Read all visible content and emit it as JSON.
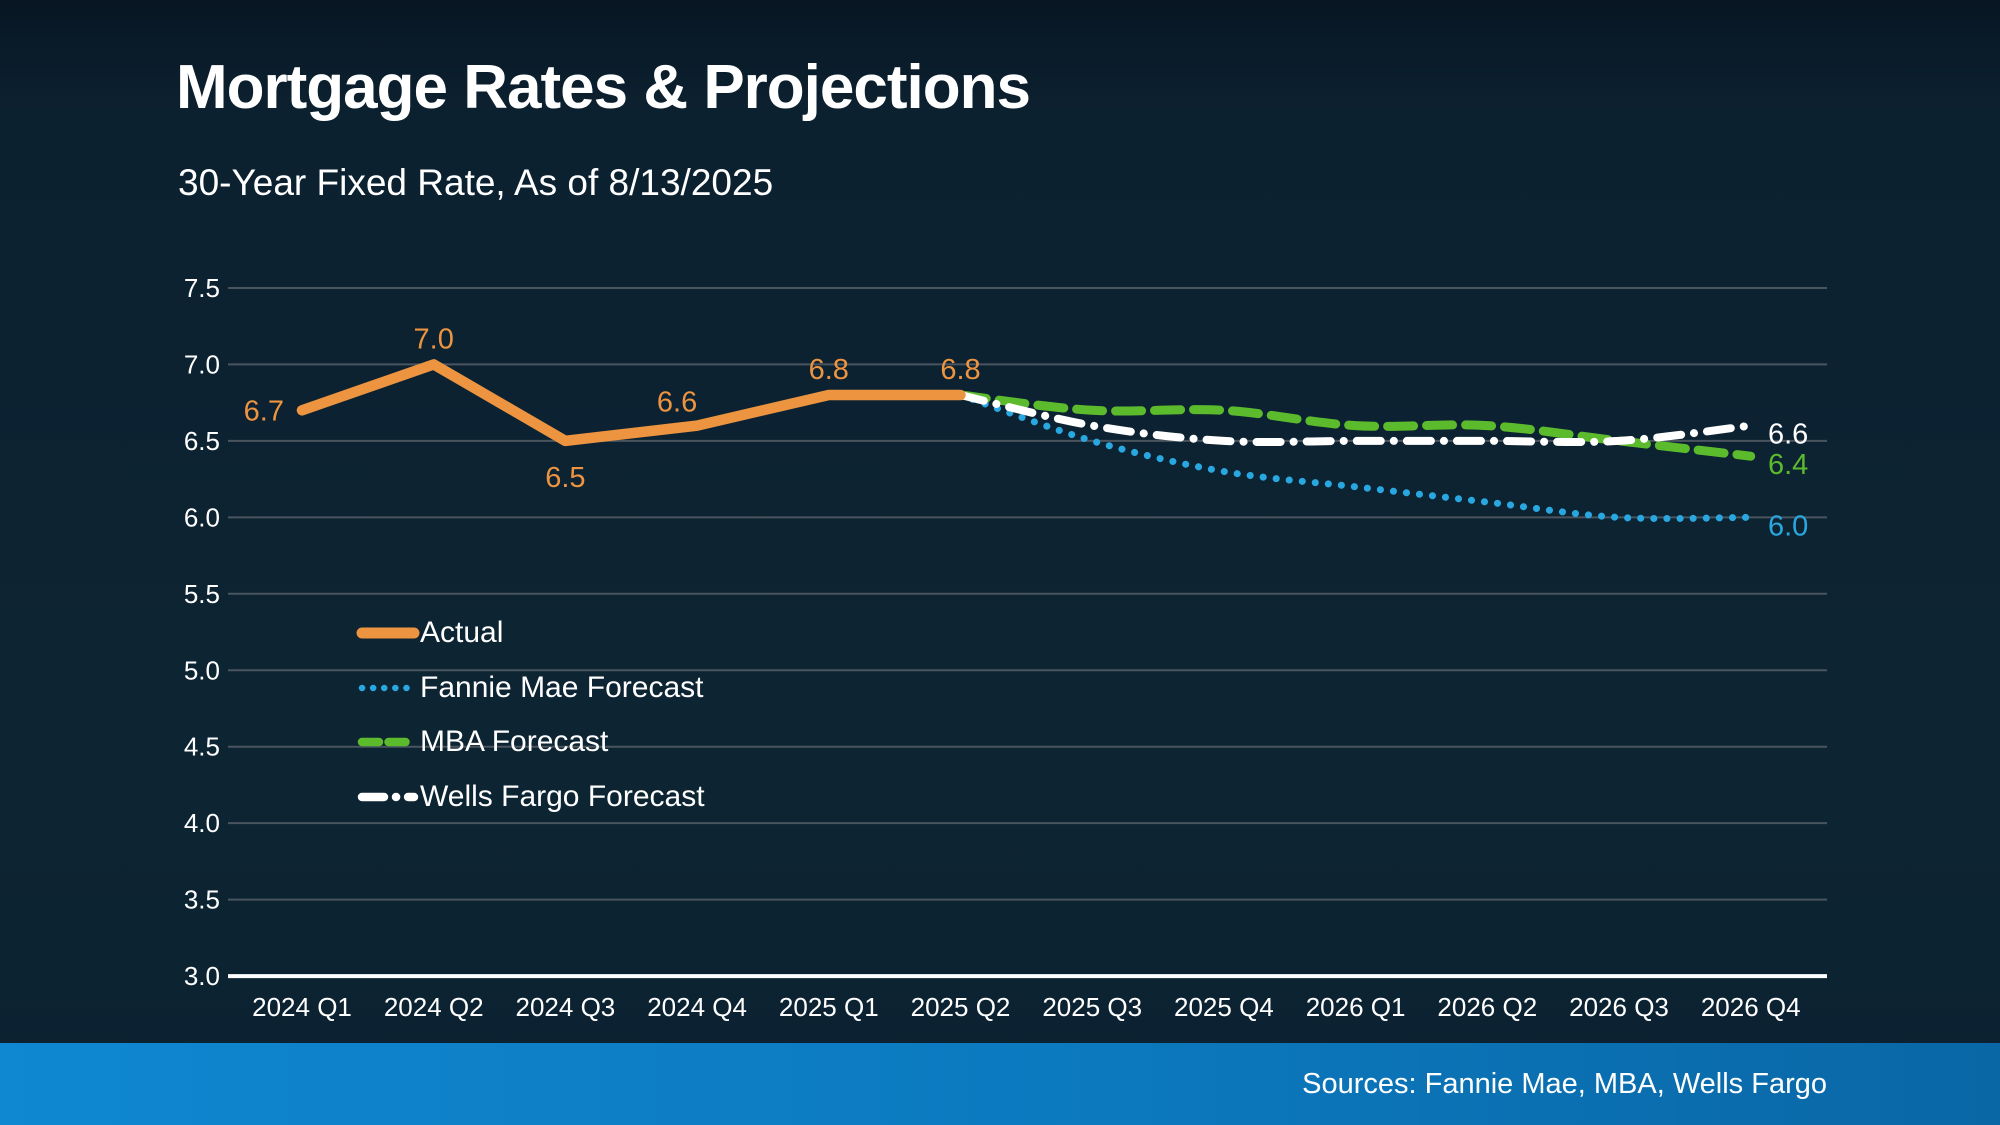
{
  "page": {
    "title": "Mortgage Rates & Projections",
    "subtitle": "30-Year Fixed Rate, As of 8/13/2025",
    "footer": {
      "sources": "Sources: Fannie Mae, MBA, Wells Fargo"
    }
  },
  "colors": {
    "background": "#0D2230",
    "actual": "#ED9440",
    "fannie_mae": "#29A7E0",
    "mba": "#5CBB2D",
    "wells_fargo": "#FFFFFF",
    "gridline": "#49545E",
    "axis_line": "#FFFFFF",
    "tick_text": "#FFFFFF",
    "footer_bar_left": "#0F87D1",
    "footer_bar_right": "#0967A6"
  },
  "chart_data": {
    "type": "line",
    "title": "Mortgage Rates & Projections",
    "subtitle": "30-Year Fixed Rate, As of 8/13/2025",
    "categories": [
      "2024 Q1",
      "2024 Q2",
      "2024 Q3",
      "2024 Q4",
      "2025 Q1",
      "2025 Q2",
      "2025 Q3",
      "2025 Q4",
      "2026 Q1",
      "2026 Q2",
      "2026 Q3",
      "2026 Q4"
    ],
    "xlabel": "",
    "ylabel": "",
    "ylim": [
      3.0,
      7.5
    ],
    "ytick_step": 0.5,
    "grid": true,
    "legend_position": "inside-left",
    "series": [
      {
        "name": "Actual",
        "style": "solid",
        "smooth": false,
        "color_key": "actual",
        "start_index": 0,
        "values": [
          6.7,
          7.0,
          6.5,
          6.6,
          6.8,
          6.8
        ],
        "point_labels": [
          {
            "text": "6.7",
            "pos": "left"
          },
          {
            "text": "7.0",
            "pos": "above"
          },
          {
            "text": "6.5",
            "pos": "below"
          },
          {
            "text": "6.6",
            "pos": "above-left"
          },
          {
            "text": "6.8",
            "pos": "above"
          },
          {
            "text": "6.8",
            "pos": "above"
          }
        ]
      },
      {
        "name": "Fannie Mae Forecast",
        "style": "dotted",
        "smooth": true,
        "color_key": "fannie_mae",
        "start_index": 5,
        "values": [
          6.8,
          6.5,
          6.3,
          6.2,
          6.1,
          6.0,
          6.0
        ],
        "end_label": "6.0"
      },
      {
        "name": "MBA Forecast",
        "style": "dashed",
        "smooth": true,
        "color_key": "mba",
        "start_index": 5,
        "values": [
          6.8,
          6.7,
          6.7,
          6.6,
          6.6,
          6.5,
          6.4
        ],
        "end_label": "6.4"
      },
      {
        "name": "Wells Fargo Forecast",
        "style": "dashdot",
        "smooth": true,
        "color_key": "wells_fargo",
        "start_index": 5,
        "values": [
          6.8,
          6.6,
          6.5,
          6.5,
          6.5,
          6.5,
          6.6
        ],
        "end_label": "6.6"
      }
    ]
  }
}
